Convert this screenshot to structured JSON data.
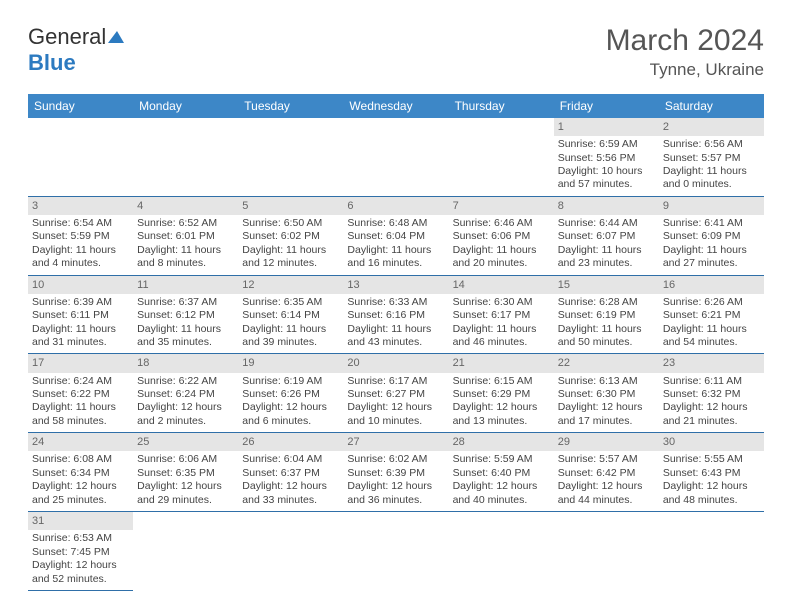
{
  "brand": {
    "part1": "General",
    "part2": "Blue"
  },
  "title": {
    "month": "March 2024",
    "location": "Tynne, Ukraine"
  },
  "weekdays": [
    "Sunday",
    "Monday",
    "Tuesday",
    "Wednesday",
    "Thursday",
    "Friday",
    "Saturday"
  ],
  "colors": {
    "header_bg": "#3d87c7",
    "header_fg": "#ffffff",
    "daynum_bg": "#e5e5e5",
    "rule": "#2f6fa8"
  },
  "firstDayOffset": 5,
  "days": [
    {
      "n": 1,
      "sunrise": "6:59 AM",
      "sunset": "5:56 PM",
      "daylight": "10 hours and 57 minutes."
    },
    {
      "n": 2,
      "sunrise": "6:56 AM",
      "sunset": "5:57 PM",
      "daylight": "11 hours and 0 minutes."
    },
    {
      "n": 3,
      "sunrise": "6:54 AM",
      "sunset": "5:59 PM",
      "daylight": "11 hours and 4 minutes."
    },
    {
      "n": 4,
      "sunrise": "6:52 AM",
      "sunset": "6:01 PM",
      "daylight": "11 hours and 8 minutes."
    },
    {
      "n": 5,
      "sunrise": "6:50 AM",
      "sunset": "6:02 PM",
      "daylight": "11 hours and 12 minutes."
    },
    {
      "n": 6,
      "sunrise": "6:48 AM",
      "sunset": "6:04 PM",
      "daylight": "11 hours and 16 minutes."
    },
    {
      "n": 7,
      "sunrise": "6:46 AM",
      "sunset": "6:06 PM",
      "daylight": "11 hours and 20 minutes."
    },
    {
      "n": 8,
      "sunrise": "6:44 AM",
      "sunset": "6:07 PM",
      "daylight": "11 hours and 23 minutes."
    },
    {
      "n": 9,
      "sunrise": "6:41 AM",
      "sunset": "6:09 PM",
      "daylight": "11 hours and 27 minutes."
    },
    {
      "n": 10,
      "sunrise": "6:39 AM",
      "sunset": "6:11 PM",
      "daylight": "11 hours and 31 minutes."
    },
    {
      "n": 11,
      "sunrise": "6:37 AM",
      "sunset": "6:12 PM",
      "daylight": "11 hours and 35 minutes."
    },
    {
      "n": 12,
      "sunrise": "6:35 AM",
      "sunset": "6:14 PM",
      "daylight": "11 hours and 39 minutes."
    },
    {
      "n": 13,
      "sunrise": "6:33 AM",
      "sunset": "6:16 PM",
      "daylight": "11 hours and 43 minutes."
    },
    {
      "n": 14,
      "sunrise": "6:30 AM",
      "sunset": "6:17 PM",
      "daylight": "11 hours and 46 minutes."
    },
    {
      "n": 15,
      "sunrise": "6:28 AM",
      "sunset": "6:19 PM",
      "daylight": "11 hours and 50 minutes."
    },
    {
      "n": 16,
      "sunrise": "6:26 AM",
      "sunset": "6:21 PM",
      "daylight": "11 hours and 54 minutes."
    },
    {
      "n": 17,
      "sunrise": "6:24 AM",
      "sunset": "6:22 PM",
      "daylight": "11 hours and 58 minutes."
    },
    {
      "n": 18,
      "sunrise": "6:22 AM",
      "sunset": "6:24 PM",
      "daylight": "12 hours and 2 minutes."
    },
    {
      "n": 19,
      "sunrise": "6:19 AM",
      "sunset": "6:26 PM",
      "daylight": "12 hours and 6 minutes."
    },
    {
      "n": 20,
      "sunrise": "6:17 AM",
      "sunset": "6:27 PM",
      "daylight": "12 hours and 10 minutes."
    },
    {
      "n": 21,
      "sunrise": "6:15 AM",
      "sunset": "6:29 PM",
      "daylight": "12 hours and 13 minutes."
    },
    {
      "n": 22,
      "sunrise": "6:13 AM",
      "sunset": "6:30 PM",
      "daylight": "12 hours and 17 minutes."
    },
    {
      "n": 23,
      "sunrise": "6:11 AM",
      "sunset": "6:32 PM",
      "daylight": "12 hours and 21 minutes."
    },
    {
      "n": 24,
      "sunrise": "6:08 AM",
      "sunset": "6:34 PM",
      "daylight": "12 hours and 25 minutes."
    },
    {
      "n": 25,
      "sunrise": "6:06 AM",
      "sunset": "6:35 PM",
      "daylight": "12 hours and 29 minutes."
    },
    {
      "n": 26,
      "sunrise": "6:04 AM",
      "sunset": "6:37 PM",
      "daylight": "12 hours and 33 minutes."
    },
    {
      "n": 27,
      "sunrise": "6:02 AM",
      "sunset": "6:39 PM",
      "daylight": "12 hours and 36 minutes."
    },
    {
      "n": 28,
      "sunrise": "5:59 AM",
      "sunset": "6:40 PM",
      "daylight": "12 hours and 40 minutes."
    },
    {
      "n": 29,
      "sunrise": "5:57 AM",
      "sunset": "6:42 PM",
      "daylight": "12 hours and 44 minutes."
    },
    {
      "n": 30,
      "sunrise": "5:55 AM",
      "sunset": "6:43 PM",
      "daylight": "12 hours and 48 minutes."
    },
    {
      "n": 31,
      "sunrise": "6:53 AM",
      "sunset": "7:45 PM",
      "daylight": "12 hours and 52 minutes."
    }
  ],
  "labels": {
    "sunrise": "Sunrise:",
    "sunset": "Sunset:",
    "daylight": "Daylight:"
  }
}
